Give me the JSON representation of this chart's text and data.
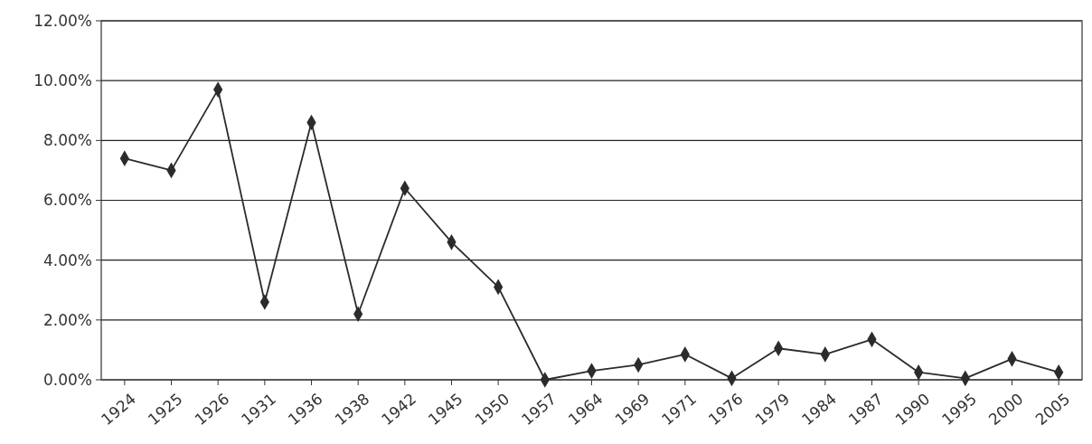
{
  "chart_data": {
    "type": "line",
    "categories": [
      "1924",
      "1925",
      "1926",
      "1931",
      "1936",
      "1938",
      "1942",
      "1945",
      "1950",
      "1957",
      "1964",
      "1969",
      "1971",
      "1976",
      "1979",
      "1984",
      "1987",
      "1990",
      "1995",
      "2000",
      "2005"
    ],
    "series": [
      {
        "color": "#2b2b2b",
        "values": [
          7.4,
          7.0,
          9.7,
          2.6,
          8.6,
          2.2,
          6.4,
          4.6,
          3.1,
          0.0,
          0.3,
          0.5,
          0.85,
          0.05,
          1.05,
          0.85,
          1.35,
          0.25,
          0.05,
          0.7,
          0.25
        ]
      }
    ],
    "ylim": [
      0,
      12
    ],
    "yticks": [
      {
        "value": 0,
        "label": "0.00%"
      },
      {
        "value": 2,
        "label": "2.00%"
      },
      {
        "value": 4,
        "label": "4.00%"
      },
      {
        "value": 6,
        "label": "6.00%"
      },
      {
        "value": 8,
        "label": "8.00%"
      },
      {
        "value": 10,
        "label": "10.00%"
      },
      {
        "value": 12,
        "label": "12.00%"
      }
    ],
    "grid": "y",
    "marker": "diamond",
    "line_style": "solid"
  }
}
